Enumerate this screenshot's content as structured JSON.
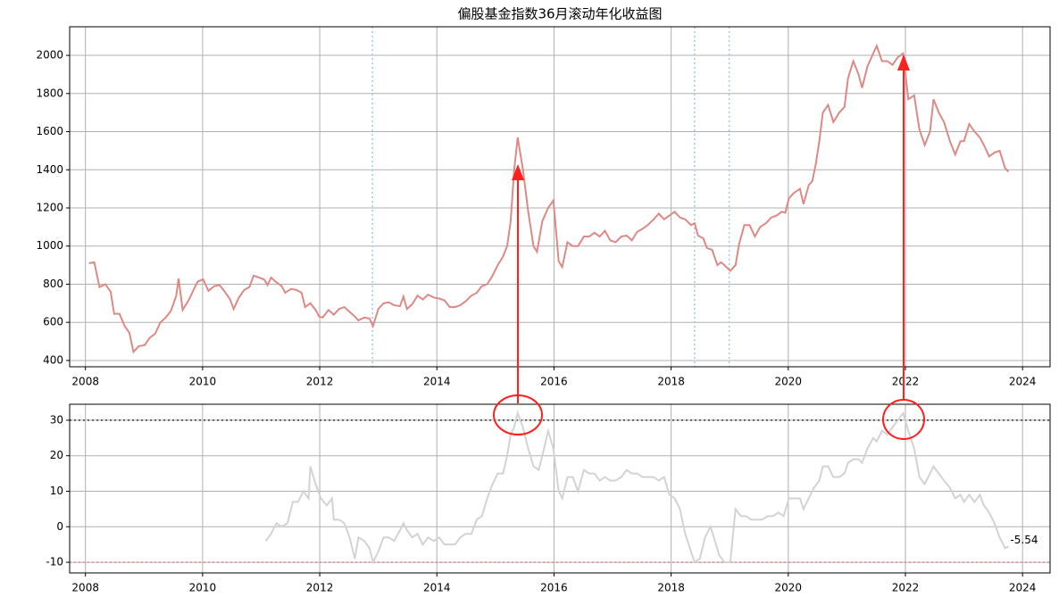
{
  "chart_data": [
    {
      "type": "line",
      "title": "偏股基金指数36月滚动年化收益图",
      "x": [
        2008.06,
        2008.15,
        2008.24,
        2008.34,
        2008.43,
        2008.49,
        2008.58,
        2008.67,
        2008.75,
        2008.82,
        2008.91,
        2009.01,
        2009.1,
        2009.19,
        2009.28,
        2009.37,
        2009.46,
        2009.55,
        2009.59,
        2009.66,
        2009.77,
        2009.86,
        2009.92,
        2010.01,
        2010.1,
        2010.2,
        2010.29,
        2010.38,
        2010.47,
        2010.53,
        2010.62,
        2010.71,
        2010.8,
        2010.87,
        2010.96,
        2011.05,
        2011.11,
        2011.17,
        2011.26,
        2011.35,
        2011.41,
        2011.51,
        2011.6,
        2011.69,
        2011.75,
        2011.84,
        2011.93,
        2011.99,
        2012.05,
        2012.15,
        2012.24,
        2012.33,
        2012.42,
        2012.51,
        2012.6,
        2012.66,
        2012.76,
        2012.85,
        2012.91,
        2013.0,
        2013.09,
        2013.18,
        2013.27,
        2013.37,
        2013.43,
        2013.49,
        2013.58,
        2013.67,
        2013.76,
        2013.85,
        2013.95,
        2014.04,
        2014.13,
        2014.22,
        2014.31,
        2014.4,
        2014.49,
        2014.59,
        2014.68,
        2014.77,
        2014.86,
        2014.95,
        2015.04,
        2015.13,
        2015.2,
        2015.26,
        2015.32,
        2015.38,
        2015.47,
        2015.56,
        2015.65,
        2015.71,
        2015.8,
        2015.9,
        2015.99,
        2016.08,
        2016.14,
        2016.23,
        2016.32,
        2016.41,
        2016.51,
        2016.6,
        2016.69,
        2016.78,
        2016.87,
        2016.96,
        2017.05,
        2017.15,
        2017.24,
        2017.33,
        2017.42,
        2017.51,
        2017.6,
        2017.7,
        2017.79,
        2017.88,
        2017.97,
        2018.06,
        2018.15,
        2018.24,
        2018.34,
        2018.4,
        2018.46,
        2018.55,
        2018.61,
        2018.7,
        2018.79,
        2018.85,
        2018.91,
        2019.01,
        2019.1,
        2019.16,
        2019.25,
        2019.34,
        2019.43,
        2019.52,
        2019.62,
        2019.71,
        2019.8,
        2019.89,
        2019.95,
        2020.01,
        2020.1,
        2020.2,
        2020.26,
        2020.35,
        2020.41,
        2020.47,
        2020.53,
        2020.59,
        2020.68,
        2020.77,
        2020.87,
        2020.96,
        2021.02,
        2021.11,
        2021.2,
        2021.26,
        2021.35,
        2021.45,
        2021.51,
        2021.6,
        2021.69,
        2021.78,
        2021.87,
        2021.96,
        2022.05,
        2022.15,
        2022.24,
        2022.33,
        2022.42,
        2022.48,
        2022.57,
        2022.66,
        2022.76,
        2022.85,
        2022.94,
        2023.0,
        2023.09,
        2023.18,
        2023.27,
        2023.34,
        2023.43,
        2023.52,
        2023.61,
        2023.7,
        2023.76
      ],
      "series": [
        {
          "color": "#dc8a86",
          "values": [
            910,
            915,
            785,
            800,
            760,
            645,
            645,
            580,
            545,
            445,
            475,
            480,
            520,
            540,
            600,
            625,
            660,
            740,
            830,
            665,
            720,
            780,
            815,
            825,
            765,
            790,
            795,
            760,
            720,
            670,
            730,
            770,
            785,
            845,
            835,
            825,
            795,
            835,
            810,
            790,
            755,
            775,
            770,
            755,
            680,
            700,
            665,
            630,
            625,
            665,
            640,
            670,
            680,
            655,
            630,
            610,
            625,
            620,
            580,
            670,
            700,
            705,
            690,
            685,
            735,
            670,
            695,
            740,
            720,
            745,
            730,
            725,
            715,
            680,
            680,
            690,
            710,
            740,
            755,
            790,
            800,
            845,
            900,
            945,
            1000,
            1130,
            1400,
            1570,
            1400,
            1180,
            1000,
            970,
            1130,
            1200,
            1240,
            920,
            890,
            1020,
            1000,
            1000,
            1050,
            1050,
            1070,
            1050,
            1080,
            1030,
            1020,
            1050,
            1055,
            1030,
            1075,
            1090,
            1110,
            1140,
            1170,
            1140,
            1160,
            1180,
            1150,
            1140,
            1110,
            1120,
            1055,
            1040,
            990,
            980,
            900,
            915,
            900,
            870,
            900,
            1010,
            1110,
            1110,
            1050,
            1100,
            1120,
            1150,
            1160,
            1180,
            1175,
            1250,
            1280,
            1300,
            1220,
            1320,
            1340,
            1430,
            1550,
            1700,
            1740,
            1650,
            1700,
            1730,
            1880,
            1970,
            1900,
            1830,
            1940,
            2010,
            2050,
            1970,
            1970,
            1950,
            1990,
            2010,
            1770,
            1790,
            1610,
            1530,
            1600,
            1770,
            1700,
            1650,
            1550,
            1480,
            1550,
            1550,
            1640,
            1600,
            1570,
            1530,
            1470,
            1490,
            1500,
            1410,
            1390
          ]
        }
      ],
      "xlim": [
        2007.73,
        2024.47
      ],
      "xticks": [
        2008,
        2010,
        2012,
        2014,
        2016,
        2018,
        2020,
        2022,
        2024
      ],
      "ylim": [
        367,
        2150
      ],
      "yticks": [
        400,
        600,
        800,
        1000,
        1200,
        1400,
        1600,
        1800,
        2000
      ],
      "grid": true,
      "vlines": [
        {
          "x": 2012.9,
          "color": "#9ecae1"
        },
        {
          "x": 2018.4,
          "color": "#9ecae1"
        },
        {
          "x": 2018.99,
          "color": "#9ecae1"
        }
      ]
    },
    {
      "type": "line",
      "x": [
        2011.08,
        2011.17,
        2011.26,
        2011.35,
        2011.45,
        2011.54,
        2011.63,
        2011.72,
        2011.81,
        2011.84,
        2011.93,
        2012.02,
        2012.12,
        2012.21,
        2012.24,
        2012.33,
        2012.42,
        2012.51,
        2012.6,
        2012.66,
        2012.76,
        2012.85,
        2012.91,
        2013.0,
        2013.09,
        2013.18,
        2013.27,
        2013.37,
        2013.43,
        2013.49,
        2013.58,
        2013.67,
        2013.76,
        2013.85,
        2013.95,
        2014.04,
        2014.13,
        2014.22,
        2014.31,
        2014.4,
        2014.49,
        2014.59,
        2014.68,
        2014.77,
        2014.86,
        2014.95,
        2015.04,
        2015.13,
        2015.2,
        2015.26,
        2015.32,
        2015.38,
        2015.47,
        2015.56,
        2015.65,
        2015.74,
        2015.8,
        2015.9,
        2015.99,
        2016.08,
        2016.14,
        2016.23,
        2016.32,
        2016.41,
        2016.51,
        2016.6,
        2016.69,
        2016.78,
        2016.87,
        2016.96,
        2017.05,
        2017.15,
        2017.24,
        2017.33,
        2017.42,
        2017.51,
        2017.6,
        2017.7,
        2017.79,
        2017.88,
        2017.97,
        2018.06,
        2018.15,
        2018.24,
        2018.34,
        2018.4,
        2018.49,
        2018.58,
        2018.67,
        2018.73,
        2018.82,
        2018.91,
        2019.01,
        2019.1,
        2019.19,
        2019.28,
        2019.37,
        2019.46,
        2019.55,
        2019.65,
        2019.74,
        2019.83,
        2019.92,
        2020.01,
        2020.1,
        2020.2,
        2020.26,
        2020.35,
        2020.44,
        2020.53,
        2020.59,
        2020.68,
        2020.77,
        2020.87,
        2020.96,
        2021.02,
        2021.11,
        2021.2,
        2021.26,
        2021.35,
        2021.45,
        2021.51,
        2021.6,
        2021.69,
        2021.78,
        2021.87,
        2021.96,
        2022.05,
        2022.15,
        2022.24,
        2022.33,
        2022.42,
        2022.48,
        2022.57,
        2022.66,
        2022.76,
        2022.85,
        2022.94,
        2023.0,
        2023.09,
        2023.18,
        2023.27,
        2023.34,
        2023.43,
        2023.52,
        2023.61,
        2023.7,
        2023.76
      ],
      "series": [
        {
          "color": "#d3d3d3",
          "values": [
            -4,
            -2,
            1,
            0,
            1,
            7,
            7,
            10,
            8,
            17,
            12,
            8,
            6,
            8,
            2,
            2,
            1,
            -3,
            -9,
            -3,
            -4,
            -6,
            -10,
            -7,
            -3,
            -3,
            -4,
            -1,
            1,
            -1,
            -3,
            -2,
            -5,
            -3,
            -4,
            -3,
            -5,
            -5,
            -5,
            -3,
            -2,
            -2,
            2,
            3,
            8,
            12,
            15,
            15,
            20,
            26,
            28,
            32,
            28,
            22,
            17,
            16,
            20,
            27,
            22,
            10,
            8,
            14,
            14,
            10,
            16,
            15,
            15,
            13,
            14,
            13,
            13,
            14,
            16,
            15,
            15,
            14,
            14,
            14,
            13,
            14,
            9,
            8,
            5,
            -2,
            -7,
            -10,
            -9,
            -3,
            0,
            -3,
            -8,
            -10,
            -10,
            5,
            3,
            3,
            2,
            2,
            2,
            3,
            3,
            4,
            3,
            8,
            8,
            8,
            5,
            8,
            11,
            13,
            17,
            17,
            14,
            14,
            15,
            18,
            19,
            19,
            18,
            22,
            25,
            24,
            27,
            26,
            28,
            30,
            32,
            27,
            22,
            14,
            12,
            15,
            17,
            15,
            13,
            11,
            8,
            9,
            7,
            9,
            7,
            9,
            6,
            4,
            1,
            -3,
            -6,
            -5.54
          ]
        }
      ],
      "xlim": [
        2007.73,
        2024.47
      ],
      "xticks": [
        2008,
        2010,
        2012,
        2014,
        2016,
        2018,
        2020,
        2022,
        2024
      ],
      "ylim": [
        -13,
        34.5
      ],
      "yticks": [
        -10,
        0,
        10,
        20,
        30
      ],
      "grid": true,
      "hlines": [
        {
          "y": 30,
          "color": "#2f3f2f"
        },
        {
          "y": -10,
          "color": "#e08a86"
        }
      ]
    }
  ]
}
